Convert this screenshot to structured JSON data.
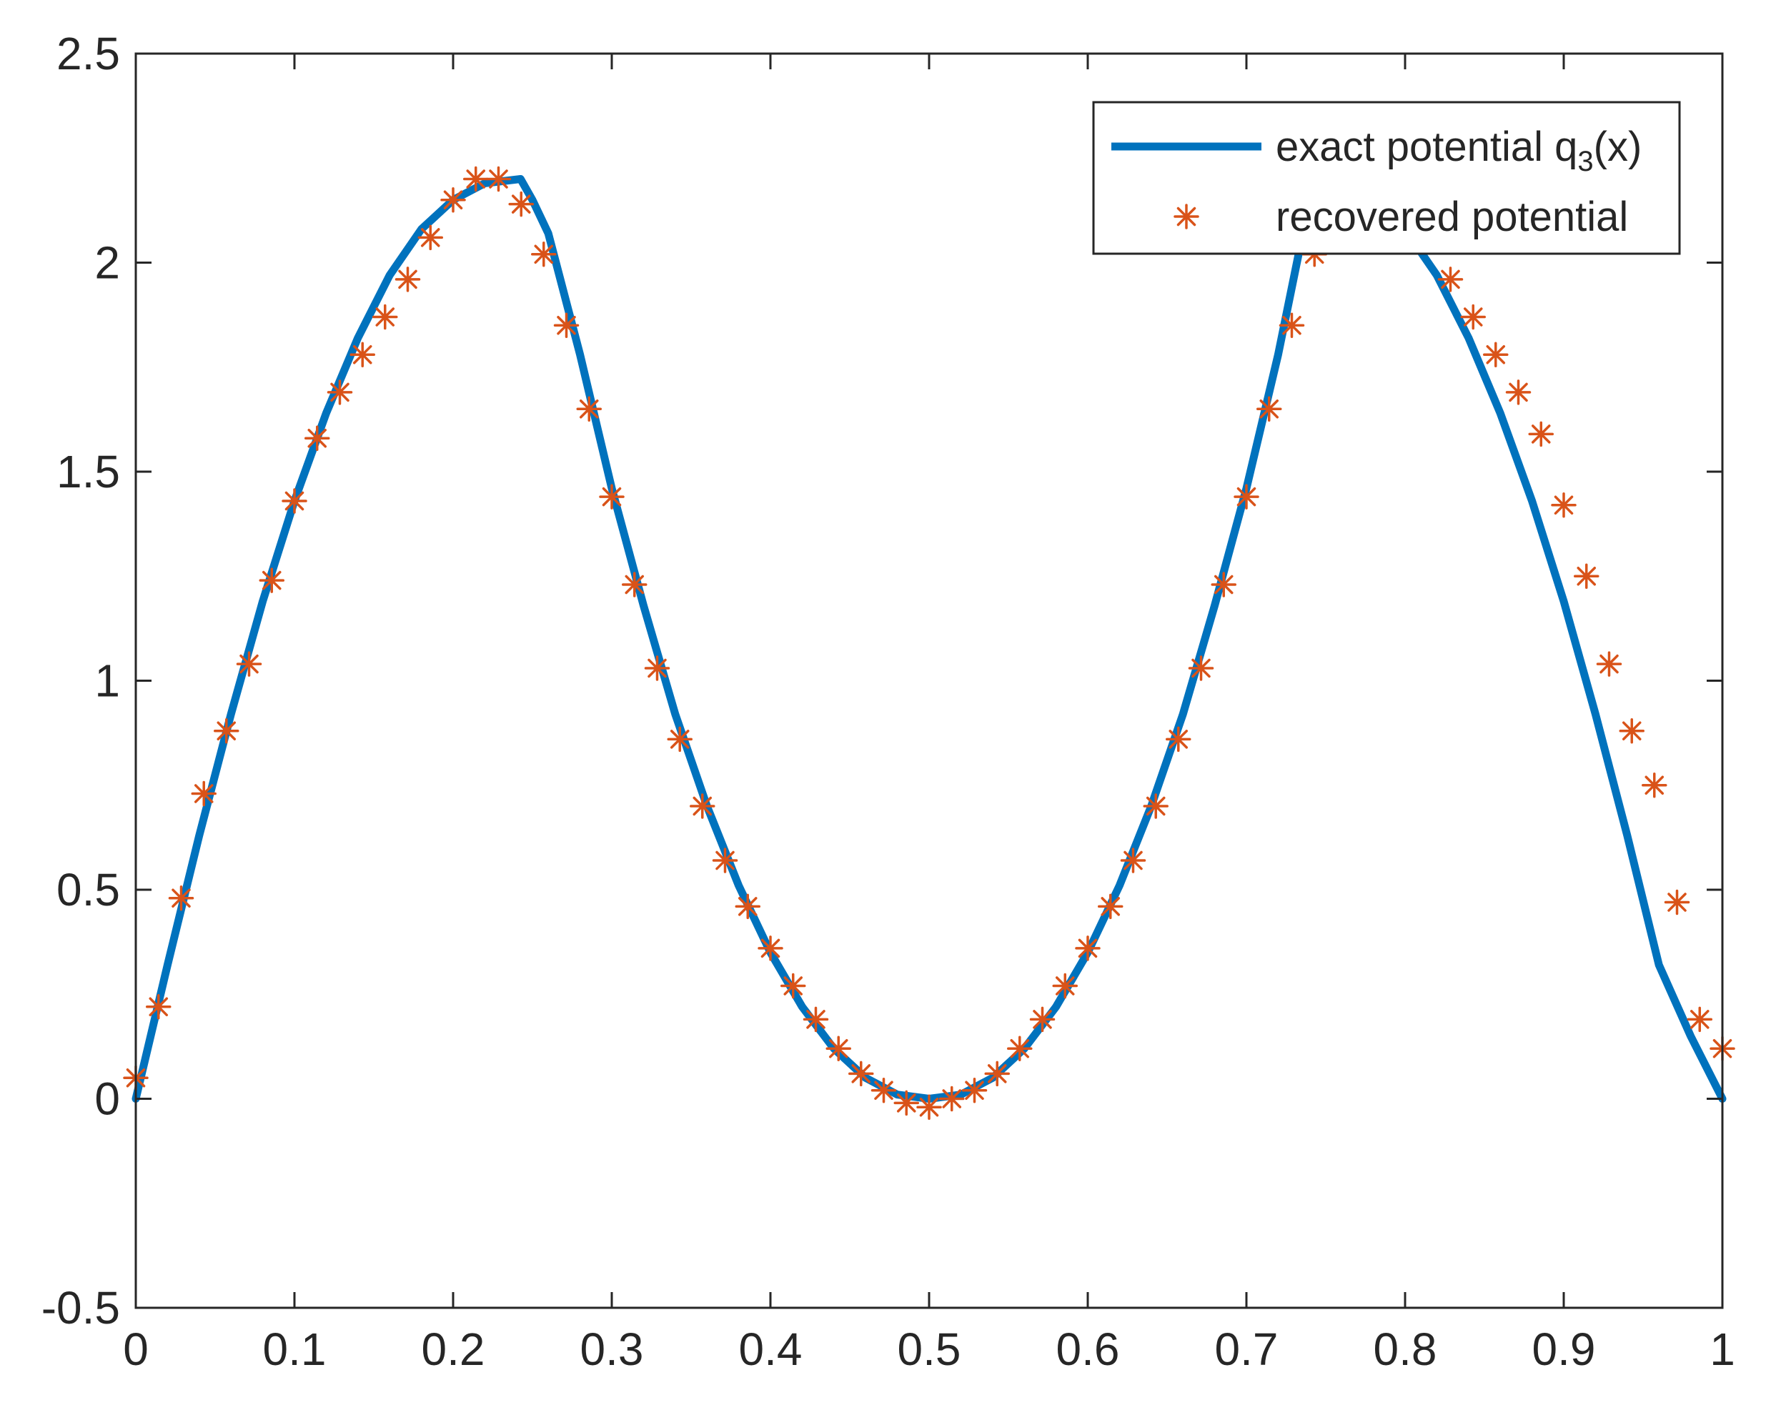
{
  "chart_data": {
    "type": "line",
    "title": "",
    "xlabel": "",
    "ylabel": "",
    "xlim": [
      0,
      1
    ],
    "ylim": [
      -0.5,
      2.5
    ],
    "xticks": [
      "0",
      "0.1",
      "0.2",
      "0.3",
      "0.4",
      "0.5",
      "0.6",
      "0.7",
      "0.8",
      "0.9",
      "1"
    ],
    "yticks": [
      "-0.5",
      "0",
      "0.5",
      "1",
      "1.5",
      "2",
      "2.5"
    ],
    "grid": false,
    "legend_position": "top-right",
    "colors": {
      "exact": "#0072BD",
      "recovered": "#D95319",
      "axes": "#262626"
    },
    "series": [
      {
        "name": "exact potential q",
        "name_subscript": "3",
        "name_suffix": "(x)",
        "style": "solid-line",
        "x": [
          0,
          0.02,
          0.04,
          0.06,
          0.08,
          0.1,
          0.12,
          0.14,
          0.16,
          0.18,
          0.2,
          0.22,
          0.2425,
          0.25,
          0.26,
          0.28,
          0.3,
          0.32,
          0.34,
          0.36,
          0.38,
          0.4,
          0.42,
          0.44,
          0.46,
          0.48,
          0.5,
          0.52,
          0.54,
          0.56,
          0.58,
          0.6,
          0.62,
          0.64,
          0.66,
          0.68,
          0.7,
          0.72,
          0.7425,
          0.76,
          0.78,
          0.8,
          0.82,
          0.84,
          0.86,
          0.88,
          0.9,
          0.92,
          0.94,
          0.96,
          0.98,
          1.0
        ],
        "y": [
          0,
          0.32,
          0.63,
          0.92,
          1.19,
          1.43,
          1.64,
          1.82,
          1.97,
          2.08,
          2.15,
          2.19,
          2.2,
          2.15,
          2.07,
          1.78,
          1.46,
          1.18,
          0.92,
          0.7,
          0.51,
          0.35,
          0.22,
          0.12,
          0.05,
          0.01,
          0,
          0.01,
          0.05,
          0.12,
          0.22,
          0.35,
          0.51,
          0.7,
          0.92,
          1.18,
          1.46,
          1.78,
          2.2,
          2.19,
          2.15,
          2.08,
          1.97,
          1.82,
          1.64,
          1.43,
          1.19,
          0.92,
          0.63,
          0.32,
          0.15,
          0
        ]
      },
      {
        "name": "recovered potential",
        "style": "asterisk-markers",
        "x": [
          0,
          0.0143,
          0.0286,
          0.0429,
          0.0571,
          0.0714,
          0.0857,
          0.1,
          0.1143,
          0.1286,
          0.1429,
          0.1571,
          0.1714,
          0.1857,
          0.2,
          0.2143,
          0.2286,
          0.2429,
          0.2571,
          0.2714,
          0.2857,
          0.3,
          0.3143,
          0.3286,
          0.3429,
          0.3571,
          0.3714,
          0.3857,
          0.4,
          0.4143,
          0.4286,
          0.4429,
          0.4571,
          0.4714,
          0.4857,
          0.5,
          0.5143,
          0.5286,
          0.5429,
          0.5571,
          0.5714,
          0.5857,
          0.6,
          0.6143,
          0.6286,
          0.6429,
          0.6571,
          0.6714,
          0.6857,
          0.7,
          0.7143,
          0.7286,
          0.7429,
          0.8286,
          0.8429,
          0.8571,
          0.8714,
          0.8857,
          0.9,
          0.9143,
          0.9286,
          0.9429,
          0.9571,
          0.9714,
          0.9857,
          1.0
        ],
        "y": [
          0.05,
          0.22,
          0.48,
          0.73,
          0.88,
          1.04,
          1.24,
          1.43,
          1.58,
          1.69,
          1.78,
          1.87,
          1.96,
          2.06,
          2.15,
          2.2,
          2.2,
          2.14,
          2.02,
          1.85,
          1.65,
          1.44,
          1.23,
          1.03,
          0.86,
          0.7,
          0.57,
          0.46,
          0.36,
          0.27,
          0.19,
          0.12,
          0.06,
          0.02,
          -0.01,
          -0.02,
          0,
          0.02,
          0.06,
          0.12,
          0.19,
          0.27,
          0.36,
          0.46,
          0.57,
          0.7,
          0.86,
          1.03,
          1.23,
          1.44,
          1.65,
          1.85,
          2.02,
          1.96,
          1.87,
          1.78,
          1.69,
          1.59,
          1.42,
          1.25,
          1.04,
          0.88,
          0.75,
          0.47,
          0.19,
          0.12
        ]
      }
    ]
  }
}
